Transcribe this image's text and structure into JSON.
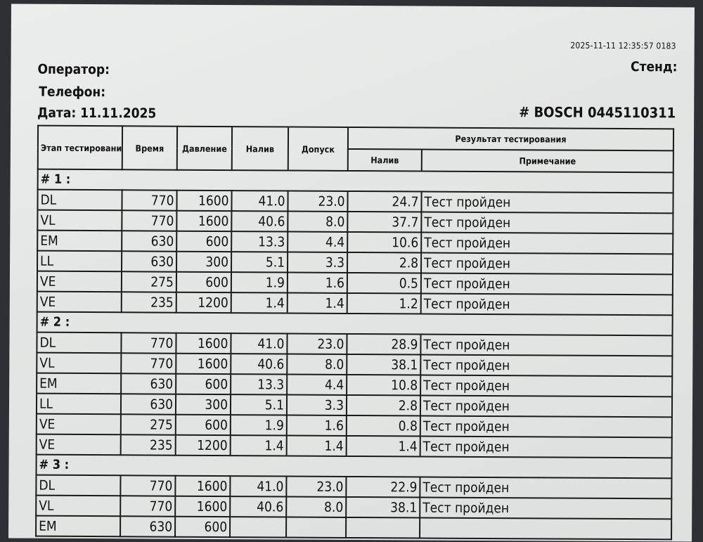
{
  "timestamp": "2025-11-11 12:35:57 0183",
  "operator_label": "Оператор:",
  "phone_label": "Телефон:",
  "date_label": "Дата: 11.11.2025",
  "stand_label": "Стенд:",
  "part_number": "# BOSCH 0445110311",
  "table": {
    "headers": {
      "stage": "Этап тестирования",
      "time": "Время",
      "pressure": "Давление",
      "fill": "Налив",
      "tolerance": "Допуск",
      "result": "Результат тестирования",
      "result_fill": "Налив",
      "note": "Примечание"
    },
    "groups": [
      {
        "label": "# 1   :",
        "rows": [
          [
            "DL",
            "770",
            "1600",
            "41.0",
            "23.0",
            "24.7",
            "Тест пройден"
          ],
          [
            "VL",
            "770",
            "1600",
            "40.6",
            "8.0",
            "37.7",
            "Тест пройден"
          ],
          [
            "EM",
            "630",
            "600",
            "13.3",
            "4.4",
            "10.6",
            "Тест пройден"
          ],
          [
            "LL",
            "630",
            "300",
            "5.1",
            "3.3",
            "2.8",
            "Тест пройден"
          ],
          [
            "VE",
            "275",
            "600",
            "1.9",
            "1.6",
            "0.5",
            "Тест пройден"
          ],
          [
            "VE",
            "235",
            "1200",
            "1.4",
            "1.4",
            "1.2",
            "Тест пройден"
          ]
        ]
      },
      {
        "label": "# 2   :",
        "rows": [
          [
            "DL",
            "770",
            "1600",
            "41.0",
            "23.0",
            "28.9",
            "Тест пройден"
          ],
          [
            "VL",
            "770",
            "1600",
            "40.6",
            "8.0",
            "38.1",
            "Тест пройден"
          ],
          [
            "EM",
            "630",
            "600",
            "13.3",
            "4.4",
            "10.8",
            "Тест пройден"
          ],
          [
            "LL",
            "630",
            "300",
            "5.1",
            "3.3",
            "2.8",
            "Тест пройден"
          ],
          [
            "VE",
            "275",
            "600",
            "1.9",
            "1.6",
            "0.8",
            "Тест пройден"
          ],
          [
            "VE",
            "235",
            "1200",
            "1.4",
            "1.4",
            "1.4",
            "Тест пройден"
          ]
        ]
      },
      {
        "label": "# 3   :",
        "rows": [
          [
            "DL",
            "770",
            "1600",
            "41.0",
            "23.0",
            "22.9",
            "Тест пройден"
          ],
          [
            "VL",
            "770",
            "1600",
            "40.6",
            "8.0",
            "38.1",
            "Тест пройден"
          ],
          [
            "EM",
            "630",
            "600",
            "",
            "",
            "",
            ""
          ]
        ]
      }
    ]
  }
}
